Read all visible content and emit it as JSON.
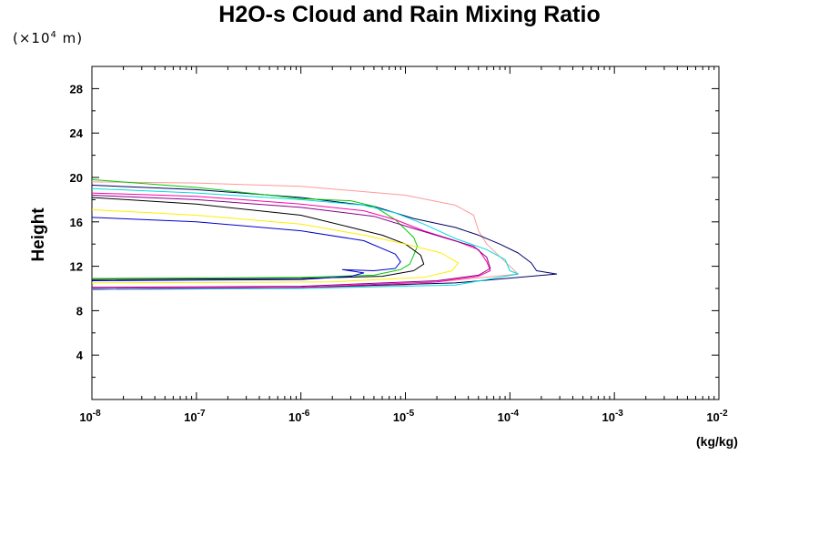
{
  "chart_data": {
    "type": "line",
    "title": "H2O-s Cloud and Rain Mixing Ratio",
    "y_unit_prefix": "(×10",
    "y_unit_exp": "4",
    "y_unit_suffix": " m)",
    "ylabel": "Height",
    "xlabel": "(kg/kg)",
    "x_scale": "log",
    "xlim": [
      1e-08,
      0.01
    ],
    "ylim": [
      0,
      30
    ],
    "x_ticks": [
      {
        "exp": "-8"
      },
      {
        "exp": "-7"
      },
      {
        "exp": "-6"
      },
      {
        "exp": "-5"
      },
      {
        "exp": "-4"
      },
      {
        "exp": "-3"
      },
      {
        "exp": "-2"
      }
    ],
    "y_ticks": [
      4,
      8,
      12,
      16,
      20,
      24,
      28
    ],
    "series": [
      {
        "color": "#ff9999",
        "points": [
          [
            1e-08,
            19.6
          ],
          [
            1e-07,
            19.5
          ],
          [
            1e-06,
            19.2
          ],
          [
            1e-05,
            18.4
          ],
          [
            3e-05,
            17.5
          ],
          [
            4.5e-05,
            16.6
          ],
          [
            5e-05,
            15.2
          ],
          [
            6e-05,
            14.0
          ],
          [
            9e-05,
            12.4
          ],
          [
            0.00012,
            11.3
          ],
          [
            1e-05,
            10.3
          ],
          [
            1e-06,
            10.05
          ],
          [
            1e-08,
            9.9
          ]
        ]
      },
      {
        "color": "#000066",
        "points": [
          [
            1e-08,
            19.3
          ],
          [
            1e-07,
            18.9
          ],
          [
            1e-06,
            18.2
          ],
          [
            5e-06,
            17.4
          ],
          [
            1.2e-05,
            16.3
          ],
          [
            3e-05,
            15.5
          ],
          [
            5e-05,
            14.8
          ],
          [
            8e-05,
            14.0
          ],
          [
            0.00012,
            13.2
          ],
          [
            0.00016,
            12.3
          ],
          [
            0.00018,
            11.6
          ],
          [
            0.00028,
            11.3
          ],
          [
            3e-05,
            10.5
          ],
          [
            1e-06,
            10.1
          ],
          [
            1e-08,
            9.9
          ]
        ]
      },
      {
        "color": "#00cc00",
        "points": [
          [
            1e-08,
            19.8
          ],
          [
            1e-07,
            19.1
          ],
          [
            1e-06,
            18.1
          ],
          [
            3e-06,
            17.9
          ],
          [
            5e-06,
            17.4
          ],
          [
            8e-06,
            16.2
          ],
          [
            1.2e-05,
            14.6
          ],
          [
            1.3e-05,
            13.8
          ],
          [
            1.2e-05,
            13.0
          ],
          [
            1.1e-05,
            12.2
          ],
          [
            9e-06,
            11.7
          ],
          [
            5e-06,
            11.2
          ],
          [
            1e-06,
            11.0
          ],
          [
            1e-08,
            10.9
          ]
        ]
      },
      {
        "color": "#00dddd",
        "points": [
          [
            1e-08,
            19.0
          ],
          [
            1e-07,
            18.6
          ],
          [
            1e-06,
            18.0
          ],
          [
            4e-06,
            17.5
          ],
          [
            8e-06,
            16.8
          ],
          [
            1.5e-05,
            15.8
          ],
          [
            3e-05,
            14.5
          ],
          [
            6e-05,
            13.5
          ],
          [
            9e-05,
            12.6
          ],
          [
            0.0001,
            11.6
          ],
          [
            0.00012,
            11.3
          ],
          [
            3e-05,
            10.3
          ],
          [
            1e-06,
            10.0
          ],
          [
            1e-08,
            9.9
          ]
        ]
      },
      {
        "color": "#ff00aa",
        "points": [
          [
            1e-08,
            18.6
          ],
          [
            1e-07,
            18.3
          ],
          [
            1e-06,
            17.6
          ],
          [
            4e-06,
            17.0
          ],
          [
            8e-06,
            16.2
          ],
          [
            1.5e-05,
            15.2
          ],
          [
            3e-05,
            14.3
          ],
          [
            5e-05,
            13.5
          ],
          [
            6e-05,
            12.4
          ],
          [
            6.5e-05,
            11.6
          ],
          [
            5e-05,
            11.1
          ],
          [
            2e-05,
            10.6
          ],
          [
            1e-06,
            10.1
          ],
          [
            1e-08,
            10.0
          ]
        ]
      },
      {
        "color": "#880088",
        "points": [
          [
            1e-08,
            18.4
          ],
          [
            1e-07,
            18.0
          ],
          [
            1e-06,
            17.3
          ],
          [
            5e-06,
            16.5
          ],
          [
            1.2e-05,
            15.4
          ],
          [
            2.5e-05,
            14.5
          ],
          [
            4.5e-05,
            13.8
          ],
          [
            6e-05,
            12.8
          ],
          [
            6.5e-05,
            11.8
          ],
          [
            5e-05,
            11.2
          ],
          [
            2e-05,
            10.7
          ],
          [
            1e-06,
            10.2
          ],
          [
            1e-08,
            10.1
          ]
        ]
      },
      {
        "color": "#000000",
        "points": [
          [
            1e-08,
            18.2
          ],
          [
            1e-07,
            17.6
          ],
          [
            1e-06,
            16.6
          ],
          [
            3e-06,
            15.5
          ],
          [
            6e-06,
            14.8
          ],
          [
            1e-05,
            14.0
          ],
          [
            1.4e-05,
            13.0
          ],
          [
            1.5e-05,
            12.2
          ],
          [
            1.2e-05,
            11.6
          ],
          [
            6e-06,
            11.1
          ],
          [
            1e-06,
            10.9
          ],
          [
            1e-08,
            10.8
          ]
        ]
      },
      {
        "color": "#ffee00",
        "points": [
          [
            1e-08,
            17.1
          ],
          [
            1e-07,
            16.6
          ],
          [
            1e-06,
            15.8
          ],
          [
            4e-06,
            14.8
          ],
          [
            1e-05,
            14.0
          ],
          [
            2.2e-05,
            13.2
          ],
          [
            3.2e-05,
            12.3
          ],
          [
            2.8e-05,
            11.6
          ],
          [
            1.5e-05,
            11.0
          ],
          [
            2e-06,
            10.6
          ],
          [
            1e-08,
            10.5
          ]
        ]
      },
      {
        "color": "#0000cc",
        "points": [
          [
            1e-08,
            16.4
          ],
          [
            1e-07,
            16.0
          ],
          [
            1e-06,
            15.2
          ],
          [
            4e-06,
            14.3
          ],
          [
            8e-06,
            13.1
          ],
          [
            9e-06,
            12.4
          ],
          [
            8e-06,
            11.8
          ],
          [
            5e-06,
            11.6
          ],
          [
            2.5e-06,
            11.7
          ],
          [
            4e-06,
            11.4
          ],
          [
            3e-06,
            11.1
          ],
          [
            1e-06,
            10.8
          ],
          [
            1e-08,
            10.7
          ]
        ]
      }
    ]
  }
}
